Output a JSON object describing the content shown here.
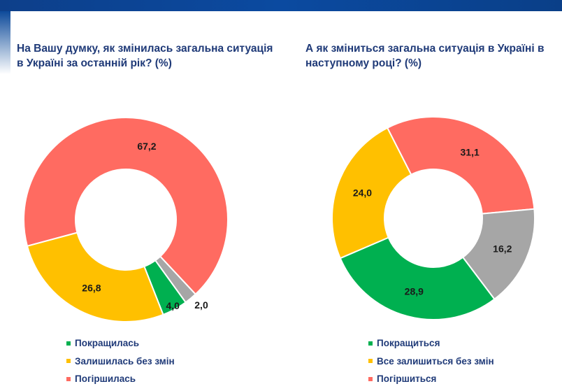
{
  "colors": {
    "improved": "#00b050",
    "same": "#ffc000",
    "worse": "#ff6b61",
    "hard": "#a6a6a6"
  },
  "chart_data": [
    {
      "type": "pie",
      "donut": true,
      "title": "На Вашу думку, як змінилась загальна ситуація в Україні за останній рік? (%)",
      "slices": [
        {
          "label": "Погіршилась",
          "value": 67.2,
          "text": "67,2",
          "key": "worse"
        },
        {
          "label": "",
          "value": 2.0,
          "text": "2,0",
          "key": "hard"
        },
        {
          "label": "Покращилась",
          "value": 4.0,
          "text": "4,0",
          "key": "improved"
        },
        {
          "label": "Залишилась без змін",
          "value": 26.8,
          "text": "26,8",
          "key": "same"
        }
      ],
      "legend": [
        {
          "label": "Покращилась",
          "key": "improved"
        },
        {
          "label": "Залишилась без змін",
          "key": "same"
        },
        {
          "label": "Погіршилась",
          "key": "worse"
        }
      ],
      "legend_position": "bottom"
    },
    {
      "type": "pie",
      "donut": true,
      "title": "А як зміниться загальна ситуація в Україні в наступному році? (%)",
      "slices": [
        {
          "label": "Погіршиться",
          "value": 31.1,
          "text": "31,1",
          "key": "worse"
        },
        {
          "label": "",
          "value": 16.2,
          "text": "16,2",
          "key": "hard"
        },
        {
          "label": "Покращиться",
          "value": 28.9,
          "text": "28,9",
          "key": "improved"
        },
        {
          "label": "Все залишиться без змін",
          "value": 24.0,
          "text": "24,0",
          "key": "same"
        }
      ],
      "legend": [
        {
          "label": "Покращиться",
          "key": "improved"
        },
        {
          "label": "Все залишиться без змін",
          "key": "same"
        },
        {
          "label": "Погіршиться",
          "key": "worse"
        }
      ],
      "legend_position": "bottom"
    }
  ]
}
